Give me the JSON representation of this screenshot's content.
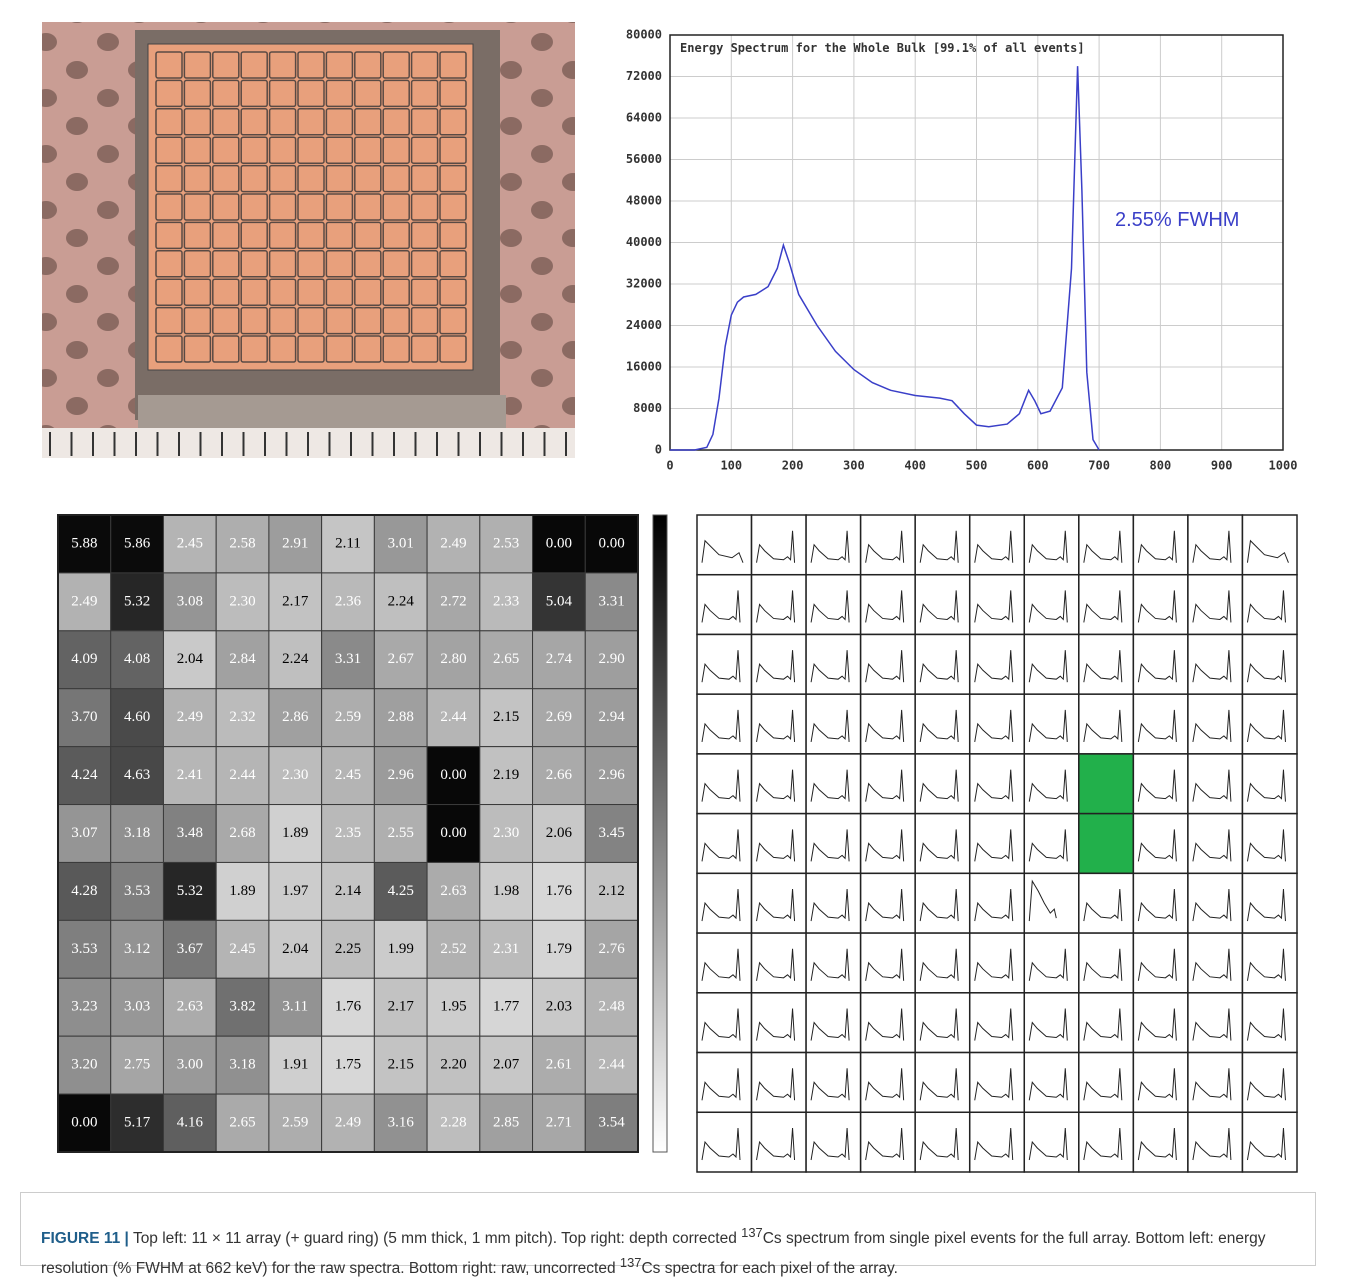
{
  "chart_data": [
    {
      "type": "line",
      "title": "Energy Spectrum for the Whole Bulk  [99.1% of all events]",
      "annotation": "2.55% FWHM",
      "color": "#3a3fc8",
      "x": [
        0,
        40,
        60,
        70,
        80,
        90,
        100,
        110,
        120,
        140,
        160,
        175,
        185,
        195,
        210,
        240,
        270,
        300,
        330,
        360,
        400,
        440,
        460,
        480,
        500,
        520,
        550,
        570,
        585,
        595,
        605,
        620,
        640,
        655,
        665,
        672,
        680,
        690,
        700
      ],
      "values": [
        0,
        0,
        500,
        3000,
        10000,
        20000,
        26000,
        28500,
        29500,
        30000,
        31500,
        35000,
        39500,
        36000,
        30000,
        24000,
        19000,
        15500,
        13000,
        11500,
        10500,
        10000,
        9500,
        7000,
        4800,
        4500,
        5000,
        7000,
        11500,
        9500,
        7000,
        7500,
        12000,
        35000,
        74000,
        50000,
        15000,
        2000,
        0
      ],
      "xlim": [
        0,
        1000
      ],
      "xticks": [
        0,
        100,
        200,
        300,
        400,
        500,
        600,
        700,
        800,
        900,
        1000
      ],
      "ylim": [
        0,
        80000
      ],
      "yticks": [
        0,
        8000,
        16000,
        24000,
        32000,
        40000,
        48000,
        56000,
        64000,
        72000,
        80000
      ],
      "grid": true
    },
    {
      "type": "heatmap",
      "values": [
        [
          5.88,
          5.86,
          2.45,
          2.58,
          2.91,
          2.11,
          3.01,
          2.49,
          2.53,
          0,
          0
        ],
        [
          2.49,
          5.32,
          3.08,
          2.3,
          2.17,
          2.36,
          2.24,
          2.72,
          2.33,
          5.04,
          3.31
        ],
        [
          4.09,
          4.08,
          2.04,
          2.84,
          2.24,
          3.31,
          2.67,
          2.8,
          2.65,
          2.74,
          2.9
        ],
        [
          3.7,
          4.6,
          2.49,
          2.32,
          2.86,
          2.59,
          2.88,
          2.44,
          2.15,
          2.69,
          2.94
        ],
        [
          4.24,
          4.63,
          2.41,
          2.44,
          2.3,
          2.45,
          2.96,
          0,
          2.19,
          2.66,
          2.96
        ],
        [
          3.07,
          3.18,
          3.48,
          2.68,
          1.89,
          2.35,
          2.55,
          0,
          2.3,
          2.06,
          3.45
        ],
        [
          4.28,
          3.53,
          5.32,
          1.89,
          1.97,
          2.14,
          4.25,
          2.63,
          1.98,
          1.76,
          2.12
        ],
        [
          3.53,
          3.12,
          3.67,
          2.45,
          2.04,
          2.25,
          1.99,
          2.52,
          2.31,
          1.79,
          2.76
        ],
        [
          3.23,
          3.03,
          2.63,
          3.82,
          3.11,
          1.76,
          2.17,
          1.95,
          1.77,
          2.03,
          2.48
        ],
        [
          3.2,
          2.75,
          3,
          3.18,
          1.91,
          1.75,
          2.15,
          2.2,
          2.07,
          2.61,
          2.44
        ],
        [
          0,
          5.17,
          4.16,
          2.65,
          2.59,
          2.49,
          3.16,
          2.28,
          2.85,
          2.71,
          3.54
        ]
      ],
      "value_labels": [
        [
          "5.88",
          "5.86",
          "2.45",
          "2.58",
          "2.91",
          "2.11",
          "3.01",
          "2.49",
          "2.53",
          "0.00",
          "0.00"
        ],
        [
          "2.49",
          "5.32",
          "3.08",
          "2.30",
          "2.17",
          "2.36",
          "2.24",
          "2.72",
          "2.33",
          "5.04",
          "3.31"
        ],
        [
          "4.09",
          "4.08",
          "2.04",
          "2.84",
          "2.24",
          "3.31",
          "2.67",
          "2.80",
          "2.65",
          "2.74",
          "2.90"
        ],
        [
          "3.70",
          "4.60",
          "2.49",
          "2.32",
          "2.86",
          "2.59",
          "2.88",
          "2.44",
          "2.15",
          "2.69",
          "2.94"
        ],
        [
          "4.24",
          "4.63",
          "2.41",
          "2.44",
          "2.30",
          "2.45",
          "2.96",
          "0.00",
          "2.19",
          "2.66",
          "2.96"
        ],
        [
          "3.07",
          "3.18",
          "3.48",
          "2.68",
          "1.89",
          "2.35",
          "2.55",
          "0.00",
          "2.30",
          "2.06",
          "3.45"
        ],
        [
          "4.28",
          "3.53",
          "5.32",
          "1.89",
          "1.97",
          "2.14",
          "4.25",
          "2.63",
          "1.98",
          "1.76",
          "2.12"
        ],
        [
          "3.53",
          "3.12",
          "3.67",
          "2.45",
          "2.04",
          "2.25",
          "1.99",
          "2.52",
          "2.31",
          "1.79",
          "2.76"
        ],
        [
          "3.23",
          "3.03",
          "2.63",
          "3.82",
          "3.11",
          "1.76",
          "2.17",
          "1.95",
          "1.77",
          "2.03",
          "2.48"
        ],
        [
          "3.20",
          "2.75",
          "3.00",
          "3.18",
          "1.91",
          "1.75",
          "2.15",
          "2.20",
          "2.07",
          "2.61",
          "2.44"
        ],
        [
          "0.00",
          "5.17",
          "4.16",
          "2.65",
          "2.59",
          "2.49",
          "3.16",
          "2.28",
          "2.85",
          "2.71",
          "3.54"
        ]
      ]
    }
  ],
  "caption": {
    "label": "FIGURE 11 |",
    "parts": [
      "Top left: 11 × 11 array (+ guard ring) (5 mm thick, 1 mm pitch). Top right: depth corrected ",
      "137",
      "Cs spectrum from single pixel events for the full array. Bottom left: energy resolution (% FWHM at 662 keV) for the raw spectra. Bottom right: raw, uncorrected ",
      "137",
      "Cs spectra for each pixel of the array."
    ]
  }
}
